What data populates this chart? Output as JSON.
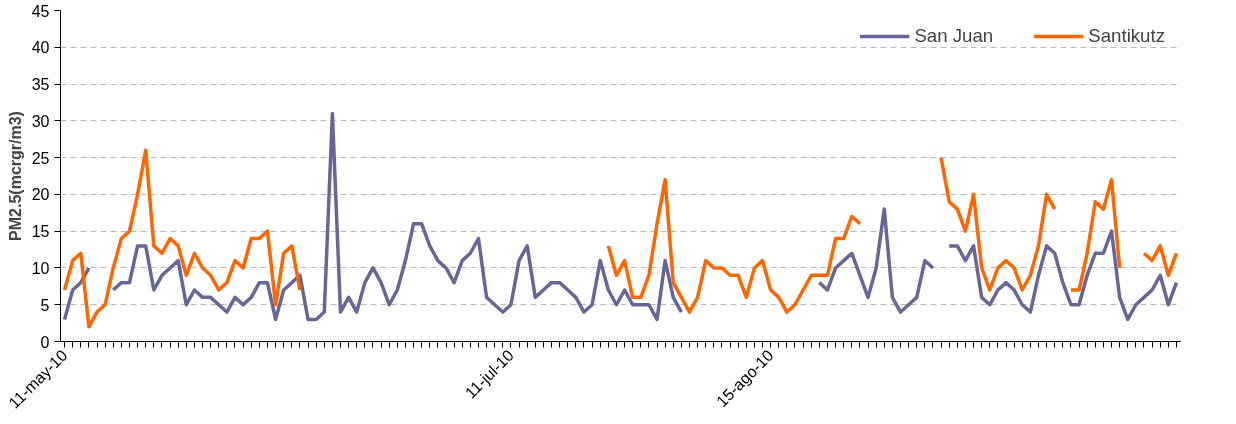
{
  "chart_data": {
    "type": "line",
    "ylabel": "PM2.5(mcrgr/m3)",
    "categories": [
      "11-may-10",
      null,
      null,
      null,
      null,
      null,
      null,
      null,
      null,
      null,
      null,
      null,
      null,
      null,
      null,
      null,
      null,
      null,
      null,
      null,
      null,
      null,
      null,
      null,
      null,
      null,
      null,
      null,
      null,
      null,
      null,
      null,
      null,
      null,
      null,
      null,
      null,
      null,
      null,
      null,
      null,
      null,
      null,
      null,
      null,
      null,
      null,
      null,
      null,
      null,
      null,
      null,
      null,
      null,
      null,
      "11-jul-10",
      null,
      null,
      null,
      null,
      null,
      null,
      null,
      null,
      null,
      null,
      null,
      null,
      null,
      null,
      null,
      null,
      null,
      null,
      null,
      null,
      null,
      null,
      null,
      null,
      null,
      null,
      null,
      null,
      null,
      null,
      null,
      "15-ago-10",
      null,
      null,
      null,
      null,
      null,
      null,
      null,
      null,
      null,
      null,
      null,
      null,
      null,
      null,
      null,
      null,
      null,
      null,
      null,
      null,
      null,
      null,
      null,
      null,
      null,
      null,
      null,
      null,
      null,
      null,
      null,
      null,
      null,
      null,
      null,
      null,
      null,
      null,
      null,
      null,
      null,
      null,
      null,
      null,
      null,
      null,
      null,
      null,
      null,
      null
    ],
    "series": [
      {
        "name": "San Juan",
        "color": "#666699",
        "values": [
          3,
          7,
          8,
          10,
          null,
          null,
          7,
          8,
          8,
          13,
          13,
          7,
          9,
          10,
          11,
          5,
          7,
          6,
          6,
          5,
          4,
          6,
          5,
          6,
          8,
          8,
          3,
          7,
          8,
          9,
          3,
          3,
          4,
          31,
          4,
          6,
          4,
          8,
          10,
          8,
          5,
          7,
          11,
          16,
          16,
          13,
          11,
          10,
          8,
          11,
          12,
          14,
          6,
          5,
          4,
          5,
          11,
          13,
          6,
          7,
          8,
          8,
          7,
          6,
          4,
          5,
          11,
          7,
          5,
          7,
          5,
          5,
          5,
          3,
          11,
          6,
          4,
          null,
          null,
          null,
          null,
          null,
          null,
          null,
          null,
          null,
          null,
          null,
          null,
          null,
          null,
          null,
          null,
          8,
          7,
          10,
          11,
          12,
          9,
          6,
          10,
          18,
          6,
          4,
          5,
          6,
          11,
          10,
          null,
          13,
          13,
          11,
          13,
          6,
          5,
          7,
          8,
          7,
          5,
          4,
          9,
          13,
          12,
          8,
          5,
          5,
          9,
          12,
          12,
          15,
          6,
          3,
          5,
          6,
          7,
          9,
          5,
          8
        ]
      },
      {
        "name": "Santikutz",
        "color": "#ff6600",
        "values": [
          7,
          11,
          12,
          2,
          4,
          5,
          10,
          14,
          15,
          20,
          26,
          13,
          12,
          14,
          13,
          9,
          12,
          10,
          9,
          7,
          8,
          11,
          10,
          14,
          14,
          15,
          5,
          12,
          13,
          7,
          null,
          null,
          null,
          null,
          null,
          null,
          null,
          null,
          null,
          null,
          null,
          null,
          null,
          null,
          null,
          null,
          null,
          null,
          null,
          null,
          null,
          null,
          null,
          null,
          null,
          null,
          null,
          null,
          null,
          null,
          null,
          null,
          null,
          null,
          null,
          null,
          null,
          13,
          9,
          11,
          6,
          6,
          9,
          16,
          22,
          8,
          6,
          4,
          6,
          11,
          10,
          10,
          9,
          9,
          6,
          10,
          11,
          7,
          6,
          4,
          5,
          7,
          9,
          9,
          9,
          14,
          14,
          17,
          16,
          null,
          null,
          null,
          null,
          null,
          null,
          null,
          null,
          null,
          25,
          19,
          18,
          15,
          20,
          10,
          7,
          10,
          11,
          10,
          7,
          9,
          13,
          20,
          18,
          null,
          7,
          7,
          12,
          19,
          18,
          22,
          10,
          null,
          null,
          12,
          11,
          13,
          9,
          12
        ]
      }
    ],
    "ylim": [
      0,
      45
    ],
    "yticks": [
      0,
      5,
      10,
      15,
      20,
      25,
      30,
      35,
      40,
      45
    ],
    "grid": "y",
    "legend": "top right",
    "marker": "none",
    "line_style": "solid"
  }
}
